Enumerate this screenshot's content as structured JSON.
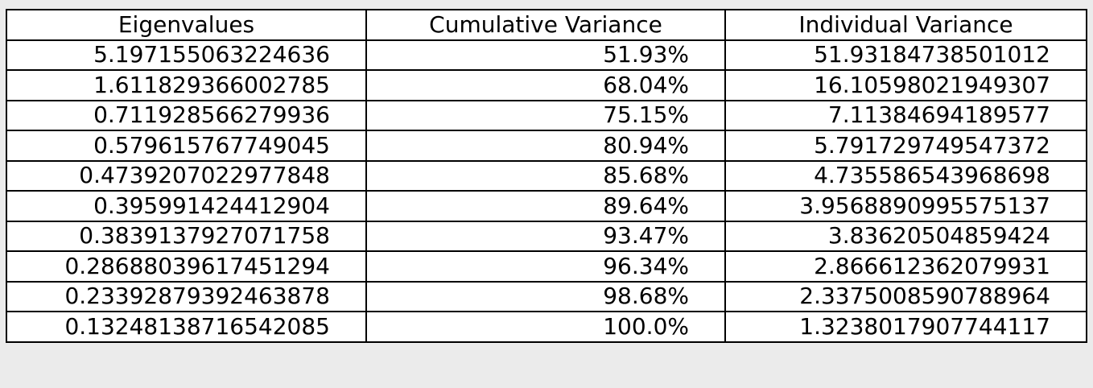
{
  "chart_data": {
    "type": "table",
    "columns": [
      "Eigenvalues",
      "Cumulative Variance",
      "Individual Variance"
    ],
    "rows": [
      [
        "5.197155063224636",
        "51.93%",
        "51.93184738501012"
      ],
      [
        "1.611829366002785",
        "68.04%",
        "16.10598021949307"
      ],
      [
        "0.711928566279936",
        "75.15%",
        "7.11384694189577"
      ],
      [
        "0.579615767749045",
        "80.94%",
        "5.791729749547372"
      ],
      [
        "0.4739207022977848",
        "85.68%",
        "4.735586543968698"
      ],
      [
        "0.395991424412904",
        "89.64%",
        "3.9568890995575137"
      ],
      [
        "0.3839137927071758",
        "93.47%",
        "3.83620504859424"
      ],
      [
        "0.28688039617451294",
        "96.34%",
        "2.866612362079931"
      ],
      [
        "0.23392879392463878",
        "98.68%",
        "2.3375008590788964"
      ],
      [
        "0.13248138716542085",
        "100.0%",
        "1.3238017907744117"
      ]
    ]
  },
  "colors": {
    "background": "#ebebeb",
    "table_background": "#ffffff",
    "border": "#000000",
    "text": "#000000"
  }
}
